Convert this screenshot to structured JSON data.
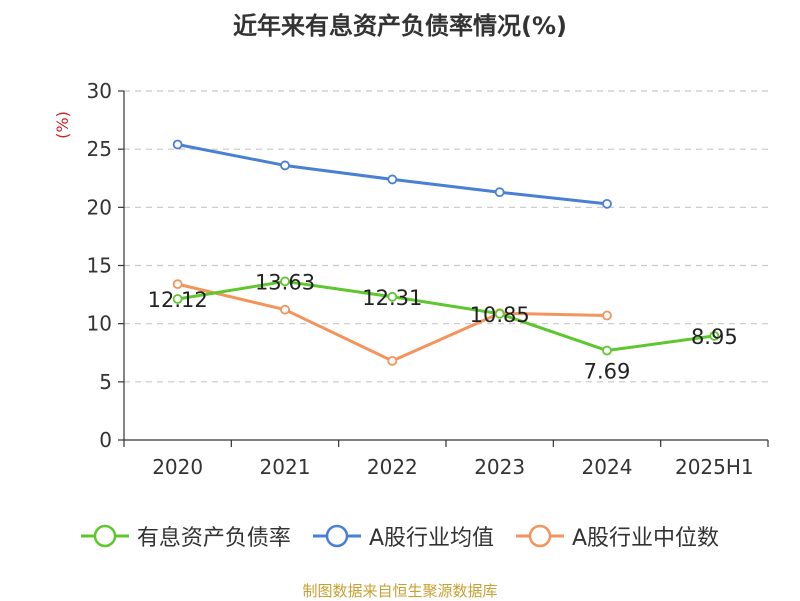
{
  "chart_data": {
    "type": "line",
    "title": "近年来有息资产负债率情况(%)",
    "ylabel": "(%)",
    "xlabel": "",
    "categories": [
      "2020",
      "2021",
      "2022",
      "2023",
      "2024",
      "2025H1"
    ],
    "ylim": [
      0,
      30
    ],
    "yticks": [
      0,
      5,
      10,
      15,
      20,
      25,
      30
    ],
    "grid": true,
    "legend_position": "bottom",
    "series": [
      {
        "name": "有息资产负债率",
        "color": "#5ec72f",
        "values": [
          12.12,
          13.63,
          12.31,
          10.85,
          7.69,
          8.95
        ],
        "labels": [
          "12.12",
          "13.63",
          "12.31",
          "10.85",
          "7.69",
          "8.95"
        ]
      },
      {
        "name": "A股行业均值",
        "color": "#4a7fd6",
        "values": [
          25.4,
          23.6,
          22.4,
          21.3,
          20.3,
          null
        ]
      },
      {
        "name": "A股行业中位数",
        "color": "#f4935b",
        "values": [
          13.4,
          11.2,
          6.8,
          10.9,
          10.7,
          null
        ]
      }
    ]
  },
  "source": "制图数据来自恒生聚源数据库"
}
